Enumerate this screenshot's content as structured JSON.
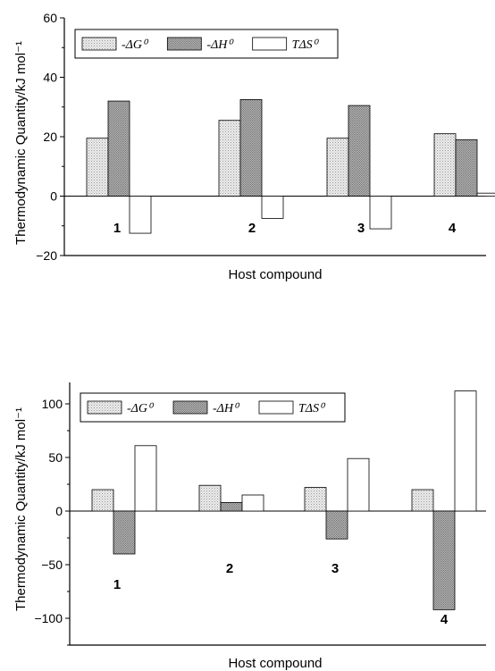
{
  "chart_data": [
    {
      "type": "bar",
      "categories": [
        "1",
        "2",
        "3",
        "4"
      ],
      "series": [
        {
          "name": "-ΔG⁰",
          "values": [
            19.5,
            25.5,
            19.5,
            21
          ]
        },
        {
          "name": "-ΔH⁰",
          "values": [
            32,
            32.5,
            30.5,
            19
          ]
        },
        {
          "name": "TΔS⁰",
          "values": [
            -12.5,
            -7.5,
            -11,
            1
          ]
        }
      ],
      "title": "",
      "xlabel": "Host compound",
      "ylabel": "Thermodynamic Quantity/kJ mol⁻¹",
      "ylim": [
        -20,
        60
      ],
      "yticks": [
        -20,
        0,
        20,
        40,
        60
      ],
      "ytick_labels": [
        "−20",
        "0",
        "20",
        "40",
        "60"
      ],
      "legend": "top-left",
      "grid": false
    },
    {
      "type": "bar",
      "categories": [
        "1",
        "2",
        "3",
        "4"
      ],
      "series": [
        {
          "name": "-ΔG⁰",
          "values": [
            20,
            24,
            22,
            20
          ]
        },
        {
          "name": "-ΔH⁰",
          "values": [
            -40,
            8,
            -26,
            -92
          ]
        },
        {
          "name": "TΔS⁰",
          "values": [
            61,
            15,
            49,
            112
          ]
        }
      ],
      "title": "",
      "xlabel": "Host compound",
      "ylabel": "Thermodynamic Quantity/kJ mol⁻¹",
      "ylim": [
        -125,
        120
      ],
      "yticks": [
        -100,
        -50,
        0,
        50,
        100
      ],
      "ytick_labels": [
        "−100",
        "−50",
        "0",
        "50",
        "100"
      ],
      "legend": "top-left",
      "grid": false
    }
  ]
}
